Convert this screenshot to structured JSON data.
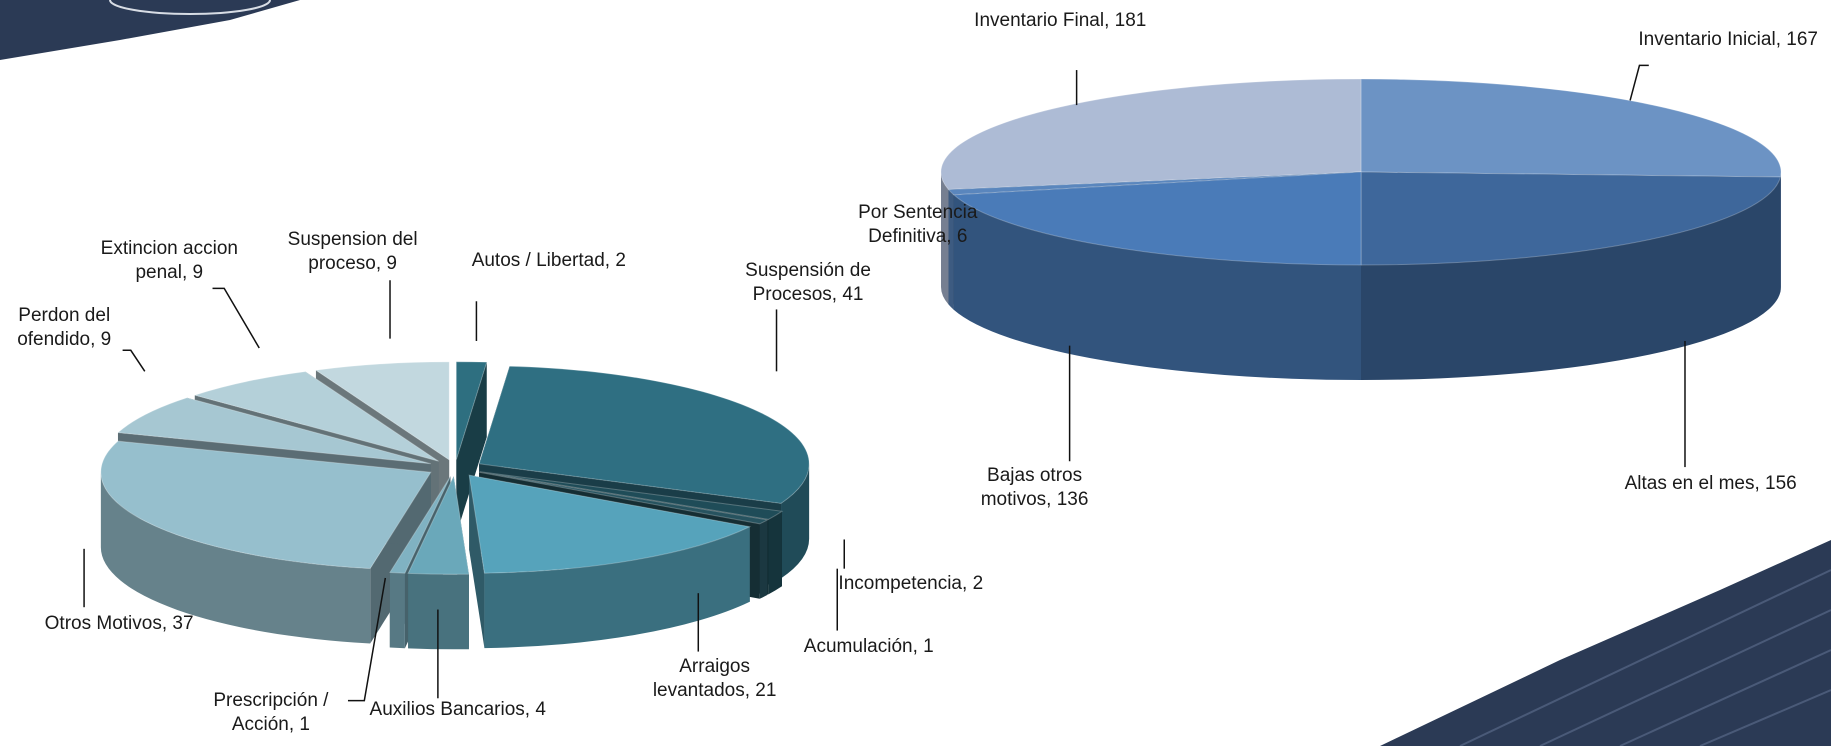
{
  "chart_data": [
    {
      "type": "pie",
      "categories": [
        "Autos / Libertad,",
        "Suspensión de Procesos,",
        "Incompetencia,",
        "Acumulación,",
        "Arraigos levantados,",
        "Auxilios Bancarios,",
        "Prescripción / Acción,",
        "Otros Motivos,",
        "Perdon del ofendido,",
        "Extincion accion penal,",
        "Suspension del proceso,"
      ],
      "values": [
        2,
        41,
        2,
        1,
        21,
        4,
        1,
        37,
        9,
        9,
        9
      ],
      "colors": [
        "#2e6f80",
        "#2f6f82",
        "#1f4c58",
        "#27535f",
        "#56a3bb",
        "#6aa8ba",
        "#80b2c2",
        "#96bfcd",
        "#a6c7d2",
        "#b4d0d9",
        "#c2d8df"
      ]
    },
    {
      "type": "pie",
      "categories": [
        "Inventario Inicial,",
        "Altas en el mes,",
        "Bajas otros motivos,",
        "Por Sentencia Definitiva,",
        "Inventario Final,"
      ],
      "values": [
        167,
        156,
        136,
        6,
        181
      ],
      "colors": [
        "#6c93c4",
        "#3e679b",
        "#4a7bb8",
        "#5a86bd",
        "#adbbd5"
      ]
    }
  ]
}
